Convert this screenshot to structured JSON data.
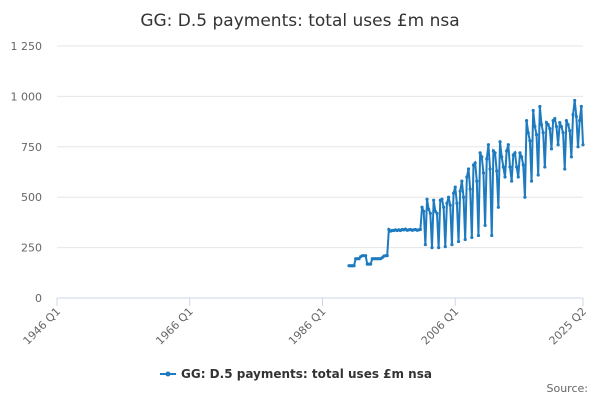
{
  "chart_data": {
    "type": "line",
    "title": "GG: D.5 payments: total uses £m nsa",
    "source": "Source:",
    "xlim": [
      1946,
      2025.25
    ],
    "xticks": [
      {
        "value": 1946,
        "label": "1946 Q1"
      },
      {
        "value": 1966,
        "label": "1966 Q1"
      },
      {
        "value": 1986,
        "label": "1986 Q1"
      },
      {
        "value": 2006,
        "label": "2006 Q1"
      },
      {
        "value": 2025.25,
        "label": "2025 Q2"
      }
    ],
    "ylim": [
      0,
      1250
    ],
    "yticks": [
      0,
      250,
      500,
      750,
      {
        "value": 1000,
        "label": "1 000"
      },
      {
        "value": 1250,
        "label": "1 250"
      }
    ],
    "grid": true,
    "legend": "bottom",
    "x": [
      1990,
      1990.25,
      1990.5,
      1990.75,
      1991,
      1991.25,
      1991.5,
      1991.75,
      1992,
      1992.25,
      1992.5,
      1992.75,
      1993,
      1993.25,
      1993.5,
      1993.75,
      1994,
      1994.25,
      1994.5,
      1994.75,
      1995,
      1995.25,
      1995.5,
      1995.75,
      1996,
      1996.25,
      1996.5,
      1996.75,
      1997,
      1997.25,
      1997.5,
      1997.75,
      1998,
      1998.25,
      1998.5,
      1998.75,
      1999,
      1999.25,
      1999.5,
      1999.75,
      2000,
      2000.25,
      2000.5,
      2000.75,
      2001,
      2001.25,
      2001.5,
      2001.75,
      2002,
      2002.25,
      2002.5,
      2002.75,
      2003,
      2003.25,
      2003.5,
      2003.75,
      2004,
      2004.25,
      2004.5,
      2004.75,
      2005,
      2005.25,
      2005.5,
      2005.75,
      2006,
      2006.25,
      2006.5,
      2006.75,
      2007,
      2007.25,
      2007.5,
      2007.75,
      2008,
      2008.25,
      2008.5,
      2008.75,
      2009,
      2009.25,
      2009.5,
      2009.75,
      2010,
      2010.25,
      2010.5,
      2010.75,
      2011,
      2011.25,
      2011.5,
      2011.75,
      2012,
      2012.25,
      2012.5,
      2012.75,
      2013,
      2013.25,
      2013.5,
      2013.75,
      2014,
      2014.25,
      2014.5,
      2014.75,
      2015,
      2015.25,
      2015.5,
      2015.75,
      2016,
      2016.25,
      2016.5,
      2016.75,
      2017,
      2017.25,
      2017.5,
      2017.75,
      2018,
      2018.25,
      2018.5,
      2018.75,
      2019,
      2019.25,
      2019.5,
      2019.75,
      2020,
      2020.25,
      2020.5,
      2020.75,
      2021,
      2021.25,
      2021.5,
      2021.75,
      2022,
      2022.25,
      2022.5,
      2022.75,
      2023,
      2023.25,
      2023.5,
      2023.75,
      2024,
      2024.25,
      2024.5,
      2024.75,
      2025,
      2025.25
    ],
    "series": [
      {
        "name": "GG: D.5 payments: total uses £m nsa",
        "color": "#1f7bbf",
        "values": [
          160,
          160,
          160,
          160,
          195,
          195,
          195,
          205,
          210,
          210,
          210,
          168,
          168,
          168,
          195,
          195,
          195,
          195,
          195,
          195,
          200,
          208,
          210,
          210,
          340,
          332,
          335,
          335,
          338,
          335,
          338,
          335,
          340,
          338,
          342,
          336,
          338,
          340,
          336,
          338,
          340,
          336,
          338,
          340,
          450,
          430,
          265,
          490,
          440,
          420,
          250,
          485,
          430,
          420,
          250,
          485,
          490,
          450,
          255,
          470,
          500,
          460,
          265,
          520,
          550,
          470,
          280,
          530,
          580,
          500,
          290,
          600,
          640,
          540,
          300,
          660,
          670,
          580,
          310,
          720,
          700,
          620,
          360,
          690,
          760,
          640,
          310,
          730,
          720,
          630,
          450,
          775,
          700,
          650,
          600,
          730,
          760,
          650,
          580,
          710,
          720,
          650,
          600,
          720,
          700,
          660,
          500,
          880,
          820,
          780,
          580,
          930,
          850,
          810,
          610,
          950,
          860,
          820,
          650,
          870,
          860,
          840,
          740,
          880,
          890,
          850,
          760,
          870,
          850,
          820,
          640,
          880,
          860,
          830,
          700,
          910,
          980,
          900,
          750,
          880,
          950,
          760
        ]
      }
    ]
  }
}
